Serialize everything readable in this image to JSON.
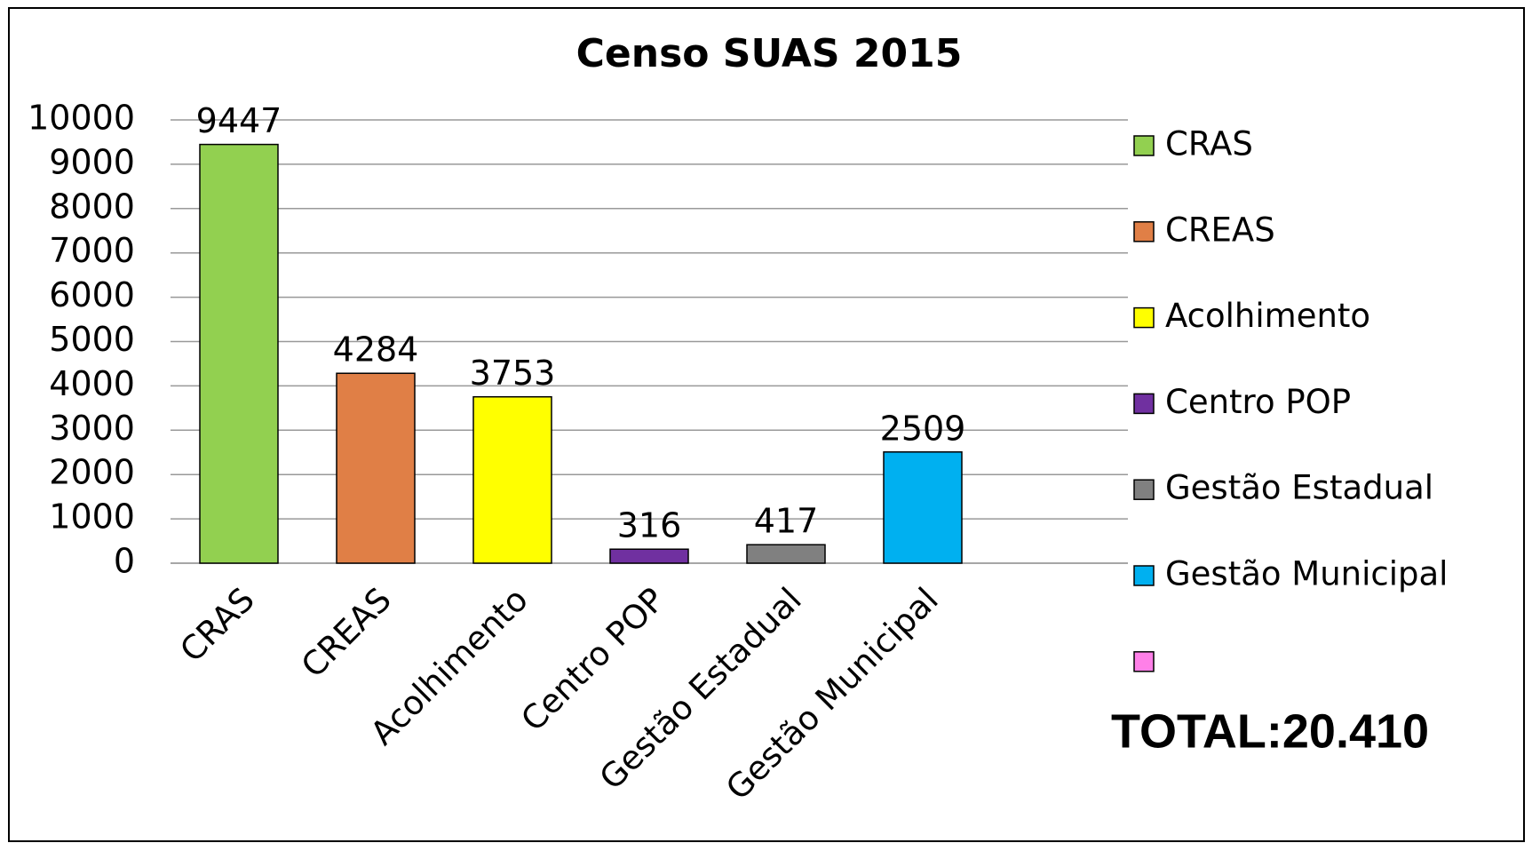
{
  "chart_data": {
    "type": "bar",
    "title": "Censo SUAS 2015",
    "categories": [
      "CRAS",
      "CREAS",
      "Acolhimento",
      "Centro POP",
      "Gestão Estadual",
      "Gestão Municipal",
      null
    ],
    "values": [
      9447,
      4284,
      3753,
      316,
      417,
      2509,
      null
    ],
    "colors": [
      "#92d050",
      "#e07f46",
      "#ffff00",
      "#7030a0",
      "#808080",
      "#00b0f0",
      "#ff80e8"
    ],
    "ylim": [
      0,
      10000
    ],
    "yticks": [
      0,
      1000,
      2000,
      3000,
      4000,
      5000,
      6000,
      7000,
      8000,
      9000,
      10000
    ],
    "grid": true,
    "legend": "right",
    "annotation": "TOTAL:20.410"
  }
}
